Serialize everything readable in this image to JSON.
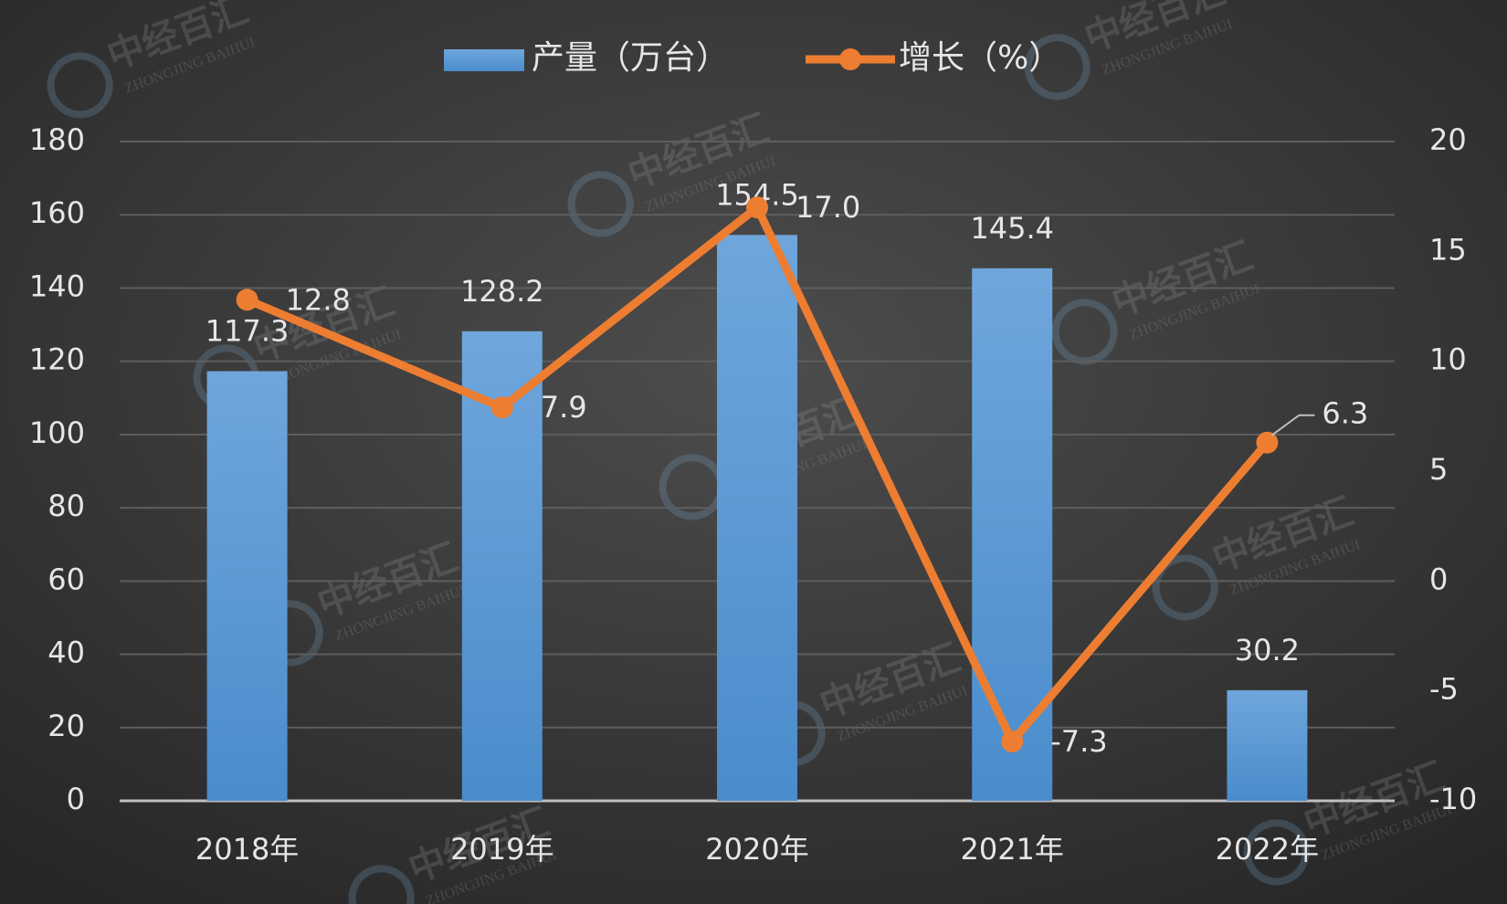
{
  "chart_data": {
    "type": "combo",
    "categories": [
      "2018年",
      "2019年",
      "2020年",
      "2021年",
      "2022年"
    ],
    "series": [
      {
        "name": "产量（万台）",
        "type": "bar",
        "color": "#5b9bd5",
        "values": [
          117.3,
          128.2,
          154.5,
          145.4,
          30.2
        ]
      },
      {
        "name": "增长（%）",
        "type": "line",
        "axis": "y2",
        "color": "#ed7d31",
        "values": [
          12.8,
          7.9,
          17.0,
          -7.3,
          6.3
        ],
        "value_labels": [
          "12.8",
          "7.9",
          "17.0",
          "-7.3",
          "6.3"
        ]
      }
    ],
    "ylim": [
      0,
      180
    ],
    "yticks": [
      0,
      20,
      40,
      60,
      80,
      100,
      120,
      140,
      160,
      180
    ],
    "y2lim": [
      -10,
      20
    ],
    "y2ticks": [
      -10,
      -5,
      0,
      5,
      10,
      15,
      20
    ],
    "grid": true,
    "legend": "top"
  },
  "watermark": {
    "cn": "中经百汇",
    "en": "ZHONGJING BAIHUI"
  }
}
